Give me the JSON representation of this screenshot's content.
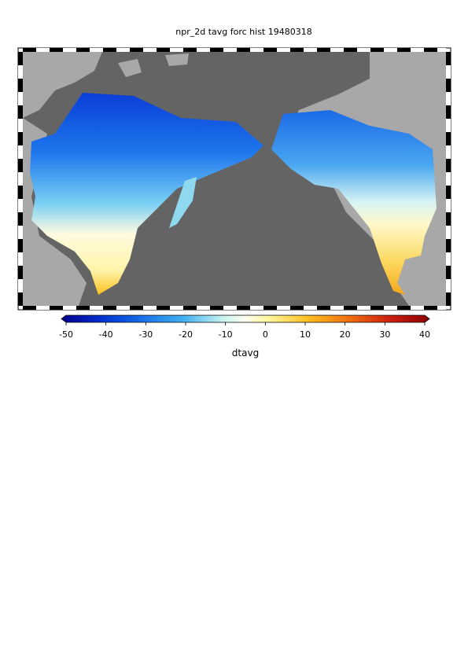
{
  "title": "npr_2d tavg forc hist 19480318",
  "colorbar": {
    "label": "dtavg",
    "range": [
      -50,
      40
    ],
    "ticks": [
      -50,
      -40,
      -30,
      -20,
      -10,
      0,
      10,
      20,
      30,
      40
    ]
  }
}
